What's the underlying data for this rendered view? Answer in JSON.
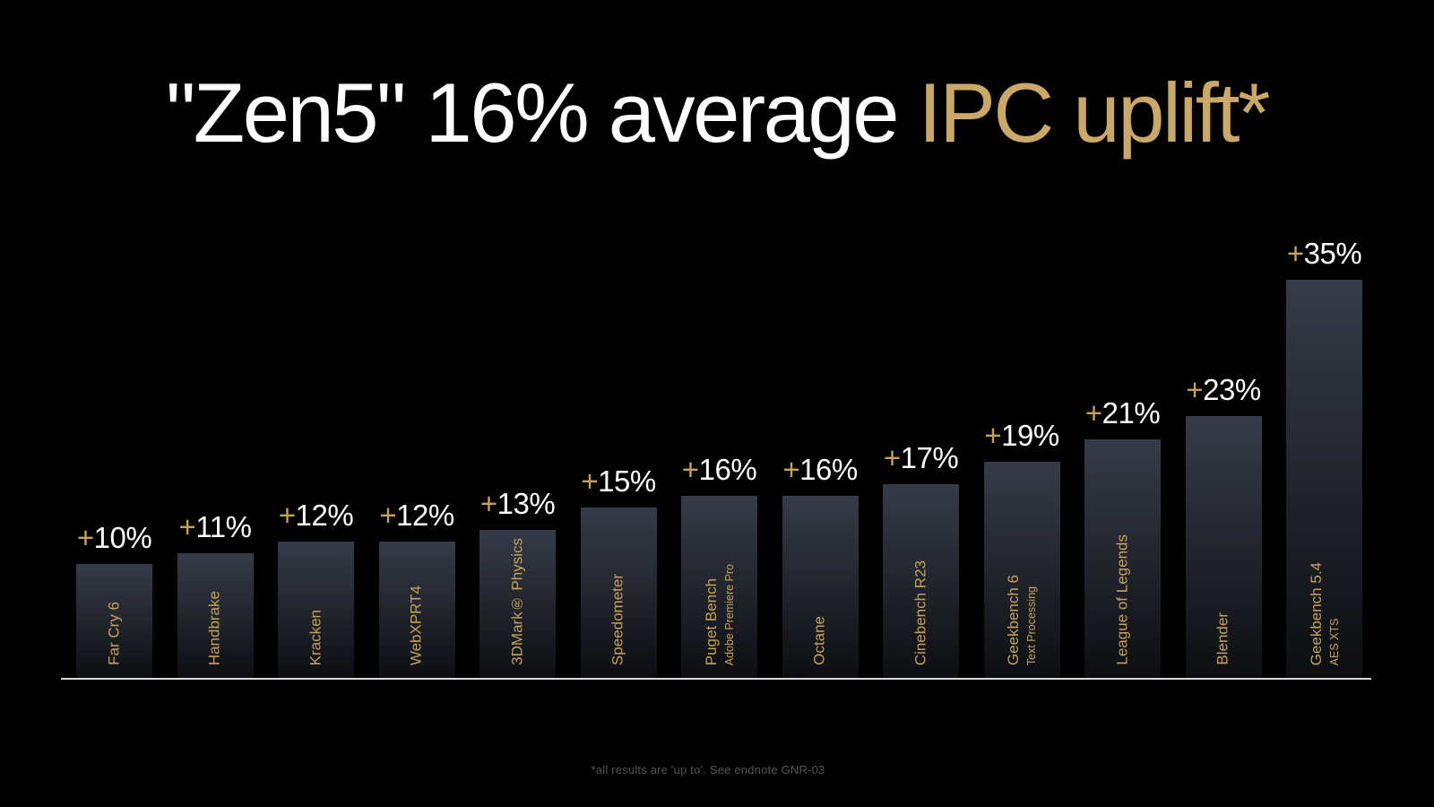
{
  "title": {
    "white_part": "\"Zen5\" 16% average ",
    "gold_part": "IPC uplift*"
  },
  "footnote": "*all results are 'up to'. See endnote GNR-03",
  "colors": {
    "background": "#000000",
    "white": "#FFFFFF",
    "title_gold": "#C9A869",
    "label_gold": "#C5A25C",
    "bar_gradient_top": "#353B48",
    "bar_gradient_mid": "#23262E",
    "bar_gradient_bottom": "#0D0E12",
    "axis_line": "#D9D9D9",
    "footnote": "#545454"
  },
  "chart_data": {
    "type": "bar",
    "title": "\"Zen5\" 16% average IPC uplift*",
    "xlabel": "",
    "ylabel": "",
    "value_suffix": "%",
    "ylim": [
      0,
      38
    ],
    "layout": {
      "grid": false,
      "legend": false,
      "y_axis_visible": false,
      "baseline_axis": true,
      "value_labels": "above-bars",
      "category_labels": "rotated-90-inside-bars-bottom-anchored"
    },
    "categories": [
      "Far Cry 6",
      "Handbrake",
      "Kracken",
      "WebXPRT4",
      "3DMark® Physics",
      "Speedometer",
      "Puget Bench",
      "Octane",
      "Cinebench R23",
      "Geekbench 6",
      "League of Legends",
      "Blender",
      "Geekbench 5.4"
    ],
    "values": [
      10,
      11,
      12,
      12,
      13,
      15,
      16,
      16,
      17,
      19,
      21,
      23,
      35
    ],
    "bars": [
      {
        "label": "Far Cry 6",
        "sublabel": "",
        "value": 10,
        "value_label": "+10%"
      },
      {
        "label": "Handbrake",
        "sublabel": "",
        "value": 11,
        "value_label": "+11%"
      },
      {
        "label": "Kracken",
        "sublabel": "",
        "value": 12,
        "value_label": "+12%"
      },
      {
        "label": "WebXPRT4",
        "sublabel": "",
        "value": 12,
        "value_label": "+12%"
      },
      {
        "label": "3DMark® Physics",
        "sublabel": "",
        "value": 13,
        "value_label": "+13%"
      },
      {
        "label": "Speedometer",
        "sublabel": "",
        "value": 15,
        "value_label": "+15%"
      },
      {
        "label": "Puget Bench",
        "sublabel": "Adobe Premiere Pro",
        "value": 16,
        "value_label": "+16%"
      },
      {
        "label": "Octane",
        "sublabel": "",
        "value": 16,
        "value_label": "+16%"
      },
      {
        "label": "Cinebench R23",
        "sublabel": "",
        "value": 17,
        "value_label": "+17%"
      },
      {
        "label": "Geekbench 6",
        "sublabel": "Text Processing",
        "value": 19,
        "value_label": "+19%"
      },
      {
        "label": "League of Legends",
        "sublabel": "",
        "value": 21,
        "value_label": "+21%"
      },
      {
        "label": "Blender",
        "sublabel": "",
        "value": 23,
        "value_label": "+23%"
      },
      {
        "label": "Geekbench 5.4",
        "sublabel": "AES XTS",
        "value": 35,
        "value_label": "+35%"
      }
    ]
  }
}
